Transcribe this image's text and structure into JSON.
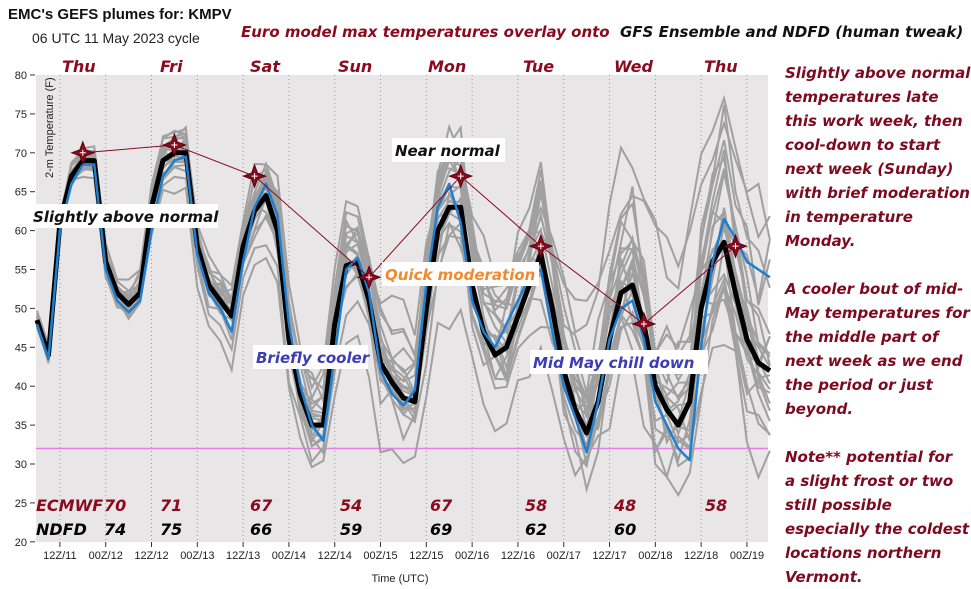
{
  "header": {
    "title": "EMC's GEFS plumes for: KMPV",
    "cycle": "06 UTC 11 May 2023 cycle",
    "overlay_title_red": "Euro model max temperatures overlay onto",
    "overlay_title_black": "GFS Ensemble and NDFD (human tweak)"
  },
  "colors": {
    "plot_bg": "#e8e6e6",
    "ensemble_member": "#a0a0a0",
    "ensemble_mean": "#000000",
    "blue_line": "#1f7fcf",
    "euro": "#8b0a1e",
    "frost_line": "#e87ee8",
    "annotation_black": "#111111",
    "annotation_orange": "#f08a2c",
    "annotation_blue": "#3c3cb4",
    "note_text": "#7d0a1e"
  },
  "chart_data": {
    "type": "line",
    "ylabel": "2-m Temperature (F)",
    "xlabel": "Time (UTC)",
    "ylim": [
      20,
      80
    ],
    "yticks": [
      "80",
      "75",
      "70",
      "65",
      "60",
      "55",
      "50",
      "45",
      "40",
      "35",
      "30",
      "25",
      "20"
    ],
    "xticks": [
      "12Z/11",
      "00Z/12",
      "12Z/12",
      "00Z/13",
      "12Z/13",
      "00Z/14",
      "12Z/14",
      "00Z/15",
      "12Z/15",
      "00Z/16",
      "12Z/16",
      "00Z/17",
      "12Z/17",
      "00Z/18",
      "12Z/18",
      "00Z/19"
    ],
    "series_start": "06Z/11",
    "series_step_hours": 3,
    "series": [
      {
        "role": "ensemble-mean",
        "values": [
          48.5,
          44,
          61,
          67,
          69,
          69,
          56,
          52,
          50.5,
          52,
          63,
          69,
          70,
          70,
          58,
          53,
          51,
          49,
          58,
          62.5,
          64.5,
          60,
          46,
          39,
          35,
          35,
          48,
          55.5,
          56,
          51,
          43,
          40.5,
          38.5,
          38,
          50,
          60,
          63,
          63,
          53,
          47,
          44,
          45,
          49,
          53,
          57,
          50,
          42,
          37,
          34,
          38,
          46,
          52,
          53,
          48,
          40,
          37,
          35,
          38,
          50,
          56,
          58.5,
          52,
          46,
          43,
          42
        ]
      },
      {
        "role": "blue-line",
        "values": [
          48,
          43.5,
          60,
          66,
          68.5,
          68.5,
          55,
          51,
          49.5,
          51,
          60,
          67,
          69,
          69.5,
          57,
          52,
          50,
          47,
          56,
          63,
          66,
          62,
          48,
          40,
          35,
          33,
          44,
          55,
          56.5,
          52,
          42,
          39,
          37.5,
          39.5,
          53,
          63,
          66,
          61,
          51,
          47,
          45,
          48,
          51,
          54,
          55,
          47,
          40,
          36,
          31.5,
          38,
          46,
          50,
          51,
          46,
          38,
          35,
          32,
          30.5,
          45,
          56,
          61.5,
          59,
          56,
          55,
          54
        ]
      }
    ],
    "reference_line": {
      "value": 32,
      "meaning": "frost"
    },
    "day_labels": [
      "Thu",
      "Fri",
      "Sat",
      "Sun",
      "Mon",
      "Tue",
      "Wed",
      "Thu"
    ],
    "euro_max": [
      {
        "day": "Thu",
        "time": "11 18Z",
        "value": 70
      },
      {
        "day": "Fri",
        "time": "12 18Z",
        "value": 71
      },
      {
        "day": "Sat",
        "time": "13 15Z",
        "value": 67
      },
      {
        "day": "Sun",
        "time": "14 21Z",
        "value": 54
      },
      {
        "day": "Mon",
        "time": "15 21Z",
        "value": 67
      },
      {
        "day": "Tue",
        "time": "16 18Z",
        "value": 58
      },
      {
        "day": "Wed",
        "time": "17 21Z",
        "value": 48
      },
      {
        "day": "Thu",
        "time": "18 21Z",
        "value": 58
      }
    ],
    "table": {
      "ecmwf_label": "ECMWF",
      "ecmwf": [
        "70",
        "71",
        "67",
        "54",
        "67",
        "58",
        "48",
        "58"
      ],
      "ndfd_label": "NDFD",
      "ndfd": [
        "74",
        "75",
        "66",
        "59",
        "69",
        "62",
        "60"
      ]
    },
    "annotations": {
      "slightly_above": "Slightly above normal",
      "near_normal": "Near normal",
      "quick_moderation": "Quick moderation",
      "briefly_cooler": "Briefly cooler",
      "chill_down": "Mid May chill down"
    }
  },
  "notes": {
    "lines": [
      "Slightly above normal",
      "temperatures late",
      "this work week, then",
      "cool-down to start",
      "next week (Sunday)",
      "with brief moderation",
      "in temperature",
      "Monday.",
      "",
      "A cooler bout of mid-",
      "May temperatures for",
      "the middle part of",
      "next week as we end",
      "the period or just",
      "beyond.",
      "",
      "Note** potential for",
      "a slight frost or two",
      "still possible",
      "especially the coldest",
      "locations northern",
      "Vermont."
    ]
  }
}
